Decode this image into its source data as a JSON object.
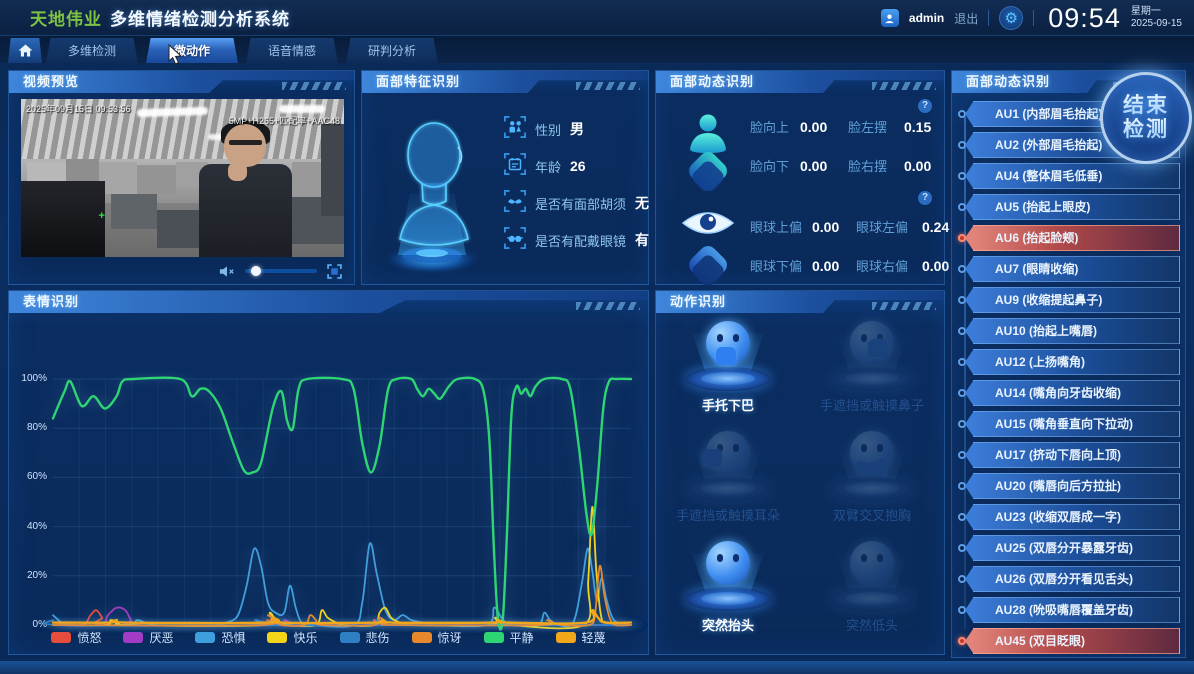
{
  "header": {
    "brand": "天地伟业",
    "title": "多维情绪检测分析系统",
    "user": "admin",
    "logout": "退出",
    "time": "09:54",
    "weekday": "星期一",
    "date": "2025-09-15"
  },
  "nav": {
    "tabs": [
      {
        "id": "tab-multi-detection",
        "label": "多维检测",
        "active": false
      },
      {
        "id": "tab-micro-action",
        "label": "微动作",
        "active": true
      },
      {
        "id": "tab-voice-emotion",
        "label": "语音情感",
        "active": false
      },
      {
        "id": "tab-judge-analysis",
        "label": "研判分析",
        "active": false
      }
    ]
  },
  "video": {
    "panel_title": "视频预览",
    "osd_timestamp": "2025年09月15日 09:53:56",
    "osd_stream_info": "5MP+H265+匹配率+AAC48"
  },
  "face_features": {
    "panel_title": "面部特征识别",
    "rows": [
      {
        "icon": "gender-icon",
        "label": "性别",
        "value": "男"
      },
      {
        "icon": "age-icon",
        "label": "年龄",
        "value": "26"
      },
      {
        "icon": "beard-icon",
        "label": "是否有面部胡须",
        "value": "无"
      },
      {
        "icon": "glasses-icon",
        "label": "是否有配戴眼镜",
        "value": "有"
      }
    ]
  },
  "face_dynamics": {
    "panel_title": "面部动态识别",
    "groups": [
      {
        "icon": "person-icon",
        "metrics": [
          {
            "label": "脸向上",
            "value": "0.00"
          },
          {
            "label": "脸左摆",
            "value": "0.15"
          },
          {
            "label": "脸向下",
            "value": "0.00"
          },
          {
            "label": "脸右摆",
            "value": "0.00"
          }
        ]
      },
      {
        "icon": "eye-icon",
        "metrics": [
          {
            "label": "眼球上偏",
            "value": "0.00"
          },
          {
            "label": "眼球左偏",
            "value": "0.24"
          },
          {
            "label": "眼球下偏",
            "value": "0.00"
          },
          {
            "label": "眼球右偏",
            "value": "0.00"
          }
        ]
      }
    ]
  },
  "expression": {
    "panel_title": "表情识别"
  },
  "actions": {
    "panel_title": "动作识别",
    "items": [
      {
        "label": "手托下巴",
        "active": true,
        "pose": "h-chin"
      },
      {
        "label": "手遮挡或触摸鼻子",
        "active": false,
        "pose": "h-nose"
      },
      {
        "label": "手遮挡或触摸耳朵",
        "active": false,
        "pose": "h-ear"
      },
      {
        "label": "双臂交叉抱胸",
        "active": false,
        "pose": "h-cross"
      },
      {
        "label": "突然抬头",
        "active": true,
        "pose": "h-up"
      },
      {
        "label": "突然低头",
        "active": false,
        "pose": "h-down"
      }
    ]
  },
  "au_panel": {
    "panel_title": "面部动态识别",
    "end_button_line1": "结束",
    "end_button_line2": "检测",
    "items": [
      {
        "label": "AU1 (内部眉毛抬起)",
        "active": false
      },
      {
        "label": "AU2 (外部眉毛抬起)",
        "active": false
      },
      {
        "label": "AU4 (整体眉毛低垂)",
        "active": false
      },
      {
        "label": "AU5 (抬起上眼皮)",
        "active": false
      },
      {
        "label": "AU6 (抬起脸颊)",
        "active": true
      },
      {
        "label": "AU7 (眼睛收缩)",
        "active": false
      },
      {
        "label": "AU9 (收缩提起鼻子)",
        "active": false
      },
      {
        "label": "AU10 (抬起上嘴唇)",
        "active": false
      },
      {
        "label": "AU12 (上扬嘴角)",
        "active": false
      },
      {
        "label": "AU14 (嘴角向牙齿收缩)",
        "active": false
      },
      {
        "label": "AU15 (嘴角垂直向下拉动)",
        "active": false
      },
      {
        "label": "AU17 (挤动下唇向上顶)",
        "active": false
      },
      {
        "label": "AU20 (嘴唇向后方拉扯)",
        "active": false
      },
      {
        "label": "AU23 (收缩双唇成一字)",
        "active": false
      },
      {
        "label": "AU25 (双唇分开暴露牙齿)",
        "active": false
      },
      {
        "label": "AU26 (双唇分开看见舌头)",
        "active": false
      },
      {
        "label": "AU28 (吮吸嘴唇覆盖牙齿)",
        "active": false
      },
      {
        "label": "AU45 (双目眨眼)",
        "active": true
      }
    ]
  },
  "icons": {
    "user": "user-icon",
    "settings": "gear-icon",
    "mute": "speaker-muted-icon",
    "fullscreen": "fullscreen-icon",
    "help": "question-icon",
    "home": "home-icon"
  },
  "chart_data": {
    "type": "line",
    "title": "表情识别",
    "xlabel": "",
    "ylabel": "",
    "ylim": [
      0,
      100
    ],
    "y_ticks": [
      "0%",
      "20%",
      "40%",
      "60%",
      "80%",
      "100%"
    ],
    "grid": true,
    "legend_position": "bottom",
    "series": [
      {
        "name": "愤怒",
        "color": "#e64c3c",
        "points": [
          [
            0,
            1
          ],
          [
            5,
            0
          ],
          [
            6.5,
            4
          ],
          [
            7.5,
            6
          ],
          [
            8.5,
            3
          ],
          [
            9.5,
            0
          ],
          [
            36,
            0
          ],
          [
            37,
            2
          ],
          [
            38,
            1
          ],
          [
            39,
            0
          ],
          [
            54.5,
            0
          ],
          [
            55.5,
            2
          ],
          [
            56.5,
            1
          ],
          [
            57.5,
            0
          ],
          [
            100,
            0
          ]
        ]
      },
      {
        "name": "厌恶",
        "color": "#a23cc4",
        "points": [
          [
            0,
            0
          ],
          [
            8,
            0
          ],
          [
            9.5,
            4
          ],
          [
            11,
            7
          ],
          [
            12.5,
            6
          ],
          [
            13.5,
            2
          ],
          [
            14.5,
            0
          ],
          [
            39,
            0
          ],
          [
            40,
            2
          ],
          [
            41,
            1
          ],
          [
            42,
            0
          ],
          [
            100,
            0
          ]
        ]
      },
      {
        "name": "恐惧",
        "color": "#3f9fdc",
        "points": [
          [
            0,
            4
          ],
          [
            1.5,
            1
          ],
          [
            3,
            0
          ],
          [
            13,
            0
          ],
          [
            14.5,
            2
          ],
          [
            16,
            1
          ],
          [
            18,
            0
          ],
          [
            28,
            0
          ],
          [
            30,
            1
          ],
          [
            32,
            4
          ],
          [
            33.5,
            16
          ],
          [
            34.8,
            31
          ],
          [
            36,
            24
          ],
          [
            37.2,
            9
          ],
          [
            38.5,
            5
          ],
          [
            40,
            5
          ],
          [
            41,
            16
          ],
          [
            42,
            7
          ],
          [
            43,
            1
          ],
          [
            45,
            0
          ],
          [
            52,
            0
          ],
          [
            53.5,
            9
          ],
          [
            54.8,
            33
          ],
          [
            56,
            21
          ],
          [
            57.5,
            6
          ],
          [
            59,
            2
          ],
          [
            60.5,
            4
          ],
          [
            62,
            2
          ],
          [
            64,
            1
          ],
          [
            66,
            0
          ],
          [
            75,
            0
          ],
          [
            76.3,
            7
          ],
          [
            77.3,
            4
          ],
          [
            78.3,
            1
          ],
          [
            80,
            0
          ],
          [
            84,
            0
          ],
          [
            85,
            5
          ],
          [
            86,
            2
          ],
          [
            87.5,
            0
          ],
          [
            90,
            1
          ],
          [
            91.5,
            17
          ],
          [
            92.5,
            31
          ],
          [
            93.3,
            22
          ],
          [
            94.1,
            10
          ],
          [
            94.9,
            19
          ],
          [
            95.7,
            11
          ],
          [
            96.6,
            4
          ],
          [
            97.6,
            1
          ],
          [
            100,
            0
          ]
        ]
      },
      {
        "name": "快乐",
        "color": "#f4d418",
        "points": [
          [
            0,
            0
          ],
          [
            9,
            0
          ],
          [
            10,
            2
          ],
          [
            11.5,
            1
          ],
          [
            13,
            0
          ],
          [
            36.5,
            0
          ],
          [
            37.5,
            5
          ],
          [
            38.5,
            2
          ],
          [
            39.5,
            1
          ],
          [
            41,
            0
          ],
          [
            45.5,
            0
          ],
          [
            46.5,
            6
          ],
          [
            47.5,
            3
          ],
          [
            49,
            1
          ],
          [
            50.5,
            0
          ],
          [
            55.5,
            0
          ],
          [
            56.5,
            5
          ],
          [
            57.5,
            7
          ],
          [
            58.5,
            3
          ],
          [
            60,
            1
          ],
          [
            61.5,
            0
          ],
          [
            75.5,
            0
          ],
          [
            76.5,
            3
          ],
          [
            77.5,
            1
          ],
          [
            79,
            0
          ],
          [
            91.8,
            0
          ],
          [
            92.6,
            18
          ],
          [
            93.3,
            48
          ],
          [
            94,
            22
          ],
          [
            94.8,
            4
          ],
          [
            95.8,
            1
          ],
          [
            100,
            0
          ]
        ]
      },
      {
        "name": "悲伤",
        "color": "#2f7fc4",
        "points": [
          [
            0,
            2
          ],
          [
            1.5,
            0
          ],
          [
            34,
            0
          ],
          [
            35,
            2
          ],
          [
            36.2,
            1
          ],
          [
            37.5,
            0
          ],
          [
            55,
            0
          ],
          [
            56,
            2
          ],
          [
            57,
            1
          ],
          [
            58,
            0
          ],
          [
            100,
            0
          ]
        ]
      },
      {
        "name": "惊讶",
        "color": "#e8872c",
        "points": [
          [
            0,
            0
          ],
          [
            36,
            0
          ],
          [
            37.2,
            4
          ],
          [
            38.2,
            2
          ],
          [
            39.5,
            0
          ],
          [
            43.5,
            0
          ],
          [
            44.5,
            4
          ],
          [
            45.5,
            2
          ],
          [
            46.5,
            0
          ],
          [
            55.5,
            0
          ],
          [
            56.5,
            3
          ],
          [
            57.8,
            1
          ],
          [
            59,
            0
          ],
          [
            84.5,
            0
          ],
          [
            85.5,
            2
          ],
          [
            86.5,
            1
          ],
          [
            88,
            0
          ],
          [
            92.8,
            0
          ],
          [
            93.8,
            5
          ],
          [
            94.6,
            24
          ],
          [
            95.4,
            12
          ],
          [
            96.3,
            3
          ],
          [
            97.3,
            0
          ],
          [
            100,
            0
          ]
        ]
      },
      {
        "name": "平静",
        "color": "#2ed573",
        "points": [
          [
            0,
            84
          ],
          [
            2,
            95
          ],
          [
            3,
            99
          ],
          [
            5,
            89
          ],
          [
            7,
            93
          ],
          [
            9,
            88
          ],
          [
            11,
            93
          ],
          [
            12,
            99
          ],
          [
            14,
            100
          ],
          [
            22,
            100
          ],
          [
            24,
            93
          ],
          [
            25.5,
            96
          ],
          [
            27,
            95
          ],
          [
            29,
            88
          ],
          [
            31,
            75
          ],
          [
            33,
            63
          ],
          [
            34.5,
            62
          ],
          [
            36,
            66
          ],
          [
            38,
            88
          ],
          [
            39.5,
            95
          ],
          [
            40.5,
            83
          ],
          [
            41.5,
            80
          ],
          [
            42.5,
            96
          ],
          [
            44,
            100
          ],
          [
            50,
            100
          ],
          [
            52,
            96
          ],
          [
            53.5,
            74
          ],
          [
            55,
            62
          ],
          [
            56.5,
            73
          ],
          [
            58,
            96
          ],
          [
            59.5,
            100
          ],
          [
            62,
            100
          ],
          [
            63,
            96
          ],
          [
            64,
            93
          ],
          [
            65,
            96
          ],
          [
            66,
            94
          ],
          [
            67,
            92
          ],
          [
            68.5,
            97
          ],
          [
            70,
            100
          ],
          [
            73,
            100
          ],
          [
            74.5,
            95
          ],
          [
            75.5,
            75
          ],
          [
            76.3,
            30
          ],
          [
            77,
            2
          ],
          [
            77.8,
            2
          ],
          [
            78.5,
            35
          ],
          [
            79.3,
            85
          ],
          [
            80.2,
            97
          ],
          [
            81,
            94
          ],
          [
            81.8,
            96
          ],
          [
            82.6,
            93
          ],
          [
            83.5,
            97
          ],
          [
            85,
            100
          ],
          [
            88,
            100
          ],
          [
            89.5,
            96
          ],
          [
            91,
            72
          ],
          [
            92.3,
            45
          ],
          [
            93.2,
            37
          ],
          [
            94.2,
            58
          ],
          [
            95.2,
            88
          ],
          [
            96.2,
            99
          ],
          [
            97.5,
            100
          ],
          [
            100,
            100
          ]
        ]
      },
      {
        "name": "轻蔑",
        "color": "#f2a71b",
        "points": [
          [
            0,
            1
          ],
          [
            9.5,
            1
          ],
          [
            11,
            2
          ],
          [
            12.5,
            1
          ],
          [
            37,
            1
          ],
          [
            38,
            3
          ],
          [
            39.5,
            1
          ],
          [
            56,
            1
          ],
          [
            57,
            2
          ],
          [
            58.5,
            1
          ],
          [
            76,
            1
          ],
          [
            77,
            2
          ],
          [
            78.5,
            1
          ],
          [
            92.3,
            1
          ],
          [
            93.3,
            6
          ],
          [
            94.3,
            3
          ],
          [
            95.5,
            1
          ],
          [
            100,
            1
          ]
        ]
      }
    ]
  }
}
